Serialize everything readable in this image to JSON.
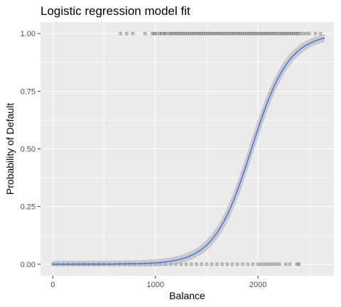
{
  "chart_data": {
    "type": "scatter",
    "title": "Logistic regression model fit",
    "xlabel": "Balance",
    "ylabel": "Probability of Default",
    "xlim": [
      -120,
      2740
    ],
    "ylim": [
      -0.05,
      1.05
    ],
    "x_ticks": [
      0,
      1000,
      2000
    ],
    "x_tick_labels": [
      "0",
      "1000",
      "2000"
    ],
    "y_ticks": [
      0,
      0.25,
      0.5,
      0.75,
      1
    ],
    "y_tick_labels": [
      "0.00",
      "0.25",
      "0.50",
      "0.75",
      "1.00"
    ],
    "grid": true,
    "panel_background": "#ebebeb",
    "grid_color": "#ffffff",
    "point_color": "#000000",
    "point_alpha": 0.2,
    "fit_line_color": "#3366ff",
    "ci_band_color": "#b3b3b3",
    "points_default_1": [
      660,
      720,
      780,
      900,
      970,
      990,
      1010,
      1040,
      1060,
      1085,
      1100,
      1130,
      1150,
      1170,
      1190,
      1210,
      1230,
      1250,
      1270,
      1290,
      1310,
      1330,
      1350,
      1370,
      1390,
      1410,
      1430,
      1450,
      1470,
      1490,
      1510,
      1530,
      1550,
      1570,
      1590,
      1610,
      1630,
      1650,
      1670,
      1690,
      1710,
      1730,
      1750,
      1770,
      1790,
      1810,
      1830,
      1850,
      1870,
      1890,
      1910,
      1930,
      1950,
      1970,
      1990,
      2010,
      2030,
      2050,
      2070,
      2090,
      2110,
      2130,
      2150,
      2170,
      2190,
      2210,
      2230,
      2250,
      2270,
      2290,
      2310,
      2330,
      2350,
      2370,
      2390,
      2410,
      2440,
      2470,
      2500,
      2560,
      2610
    ],
    "points_default_0": [
      0,
      50,
      100,
      150,
      200,
      250,
      300,
      350,
      400,
      450,
      500,
      550,
      600,
      650,
      700,
      750,
      800,
      850,
      900,
      950,
      1000,
      1050,
      1100,
      1150,
      1200,
      1250,
      1300,
      1350,
      1400,
      1450,
      1500,
      1550,
      1600,
      1650,
      1700,
      1750,
      1800,
      1850,
      1900,
      1950,
      2000,
      2030,
      2060,
      2090,
      2120,
      2150,
      2180,
      2210,
      2270,
      2310,
      2380,
      2400
    ],
    "fit": {
      "model": "logistic",
      "intercept": -10.65,
      "slope": 0.0055,
      "x_range": [
        0,
        2650
      ]
    }
  }
}
